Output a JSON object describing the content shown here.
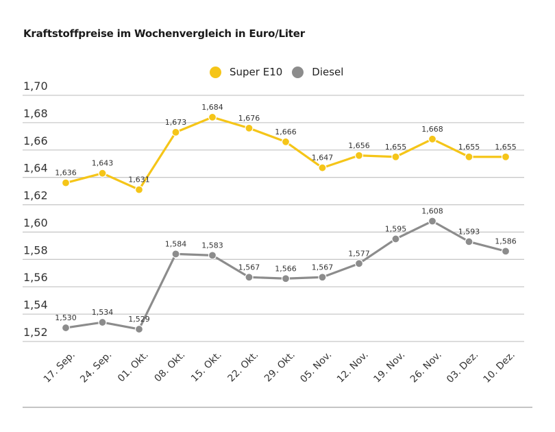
{
  "chart_data": {
    "type": "line",
    "title": "Kraftstoffpreise im Wochenvergleich in Euro/Liter",
    "xlabel": "",
    "ylabel": "",
    "categories": [
      "17. Sep.",
      "24. Sep.",
      "01. Okt.",
      "08. Okt.",
      "15. Okt.",
      "22. Okt.",
      "29. Okt.",
      "05. Nov.",
      "12. Nov.",
      "19. Nov.",
      "26. Nov.",
      "03. Dez.",
      "10. Dez."
    ],
    "series": [
      {
        "name": "Super E10",
        "color": "#F5C518",
        "values": [
          1.636,
          1.643,
          1.631,
          1.673,
          1.684,
          1.676,
          1.666,
          1.647,
          1.656,
          1.655,
          1.668,
          1.655,
          1.655
        ],
        "labels": [
          "1,636",
          "1,643",
          "1,631",
          "1,673",
          "1,684",
          "1,676",
          "1,666",
          "1,647",
          "1,656",
          "1,655",
          "1,668",
          "1,655",
          "1,655"
        ]
      },
      {
        "name": "Diesel",
        "color": "#8C8C8C",
        "values": [
          1.53,
          1.534,
          1.529,
          1.584,
          1.583,
          1.567,
          1.566,
          1.567,
          1.577,
          1.595,
          1.608,
          1.593,
          1.586
        ],
        "labels": [
          "1,530",
          "1,534",
          "1,529",
          "1,584",
          "1,583",
          "1,567",
          "1,566",
          "1,567",
          "1,577",
          "1,595",
          "1,608",
          "1,593",
          "1,586"
        ]
      }
    ],
    "ylim": [
      1.52,
      1.7
    ],
    "yticks": [
      1.7,
      1.68,
      1.66,
      1.64,
      1.62,
      1.6,
      1.58,
      1.56,
      1.54,
      1.52
    ],
    "ytick_labels": [
      "1,70",
      "1,68",
      "1,66",
      "1,64",
      "1,62",
      "1,60",
      "1,58",
      "1,56",
      "1,54",
      "1,52"
    ],
    "grid": true,
    "legend": "top-center",
    "gridline_color": "#C8C8C8"
  }
}
